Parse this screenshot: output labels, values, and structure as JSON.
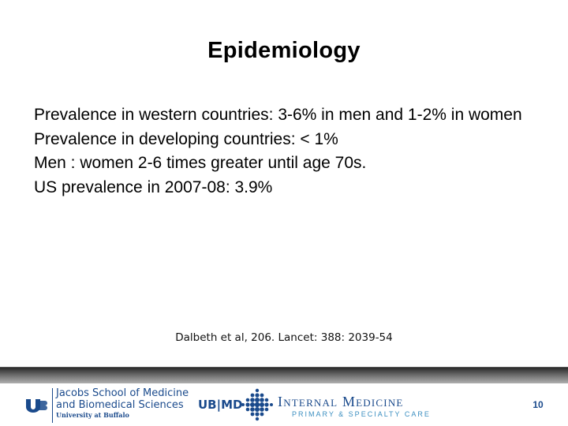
{
  "slide": {
    "title": "Epidemiology",
    "bullets": [
      "Prevalence in western countries: 3-6% in men and 1-2% in women",
      "Prevalence in developing countries: < 1%",
      "Men : women 2-6 times greater until age 70s.",
      "US prevalence in 2007-08: 3.9%"
    ],
    "citation": "Dalbeth et al, 206. Lancet: 388: 2039-54",
    "page_number": "10"
  },
  "footer": {
    "jacobs_line1": "Jacobs School of Medicine",
    "jacobs_line2": "and Biomedical Sciences",
    "jacobs_line3": "University at Buffalo",
    "ubmd": "UB|MD",
    "im_title": "Internal Medicine",
    "im_subtitle": "PRIMARY & SPECIALTY CARE"
  },
  "colors": {
    "brand_blue": "#1a4a8c",
    "accent_blue": "#3a8ec0"
  },
  "icons": {
    "ub": "ub-logo-icon",
    "dots": "dot-grid-logo-icon"
  }
}
